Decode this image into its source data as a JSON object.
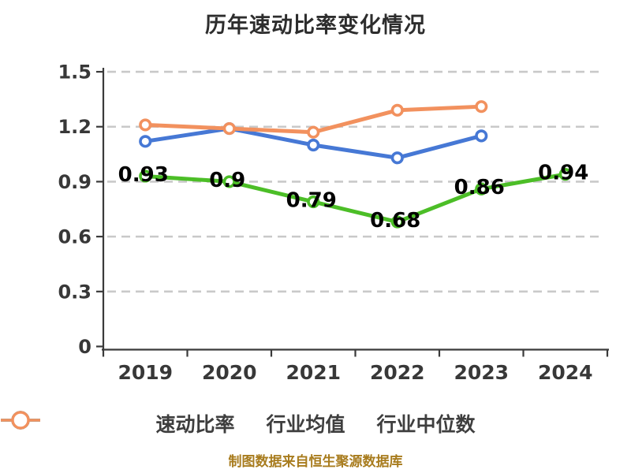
{
  "title": "历年速动比率变化情况",
  "footer": "制图数据来自恒生聚源数据库",
  "colors": {
    "quick_ratio": "#4cbe27",
    "industry_avg": "#4678d5",
    "industry_median": "#f2915e",
    "grid": "#c9c9c9",
    "axis": "#3a3a3a",
    "tick_label": "#383838",
    "data_label": "#000000",
    "title_text": "#2d2d2d",
    "footer_text": "#a87c1e"
  },
  "chart_data": {
    "type": "line",
    "title": "历年速动比率变化情况",
    "categories": [
      "2019",
      "2020",
      "2021",
      "2022",
      "2023",
      "2024"
    ],
    "y_ticks": [
      0,
      0.3,
      0.6,
      0.9,
      1.2,
      1.5
    ],
    "y_tick_labels": [
      "0",
      "0.3",
      "0.6",
      "0.9",
      "1.2",
      "1.5"
    ],
    "ylim": [
      0,
      1.5
    ],
    "grid": "horizontal-dashed",
    "legend_position": "bottom",
    "footnote": "制图数据来自恒生聚源数据库",
    "series": [
      {
        "name": "速动比率",
        "color": "#4cbe27",
        "values": [
          0.93,
          0.9,
          0.79,
          0.68,
          0.86,
          0.94
        ],
        "point_labels": [
          "0.93",
          "0.9",
          "0.79",
          "0.68",
          "0.86",
          "0.94"
        ]
      },
      {
        "name": "行业均值",
        "color": "#4678d5",
        "values": [
          1.12,
          1.19,
          1.1,
          1.03,
          1.15,
          null
        ],
        "point_labels": null
      },
      {
        "name": "行业中位数",
        "color": "#f2915e",
        "values": [
          1.21,
          1.19,
          1.17,
          1.29,
          1.31,
          null
        ],
        "point_labels": null
      }
    ]
  }
}
